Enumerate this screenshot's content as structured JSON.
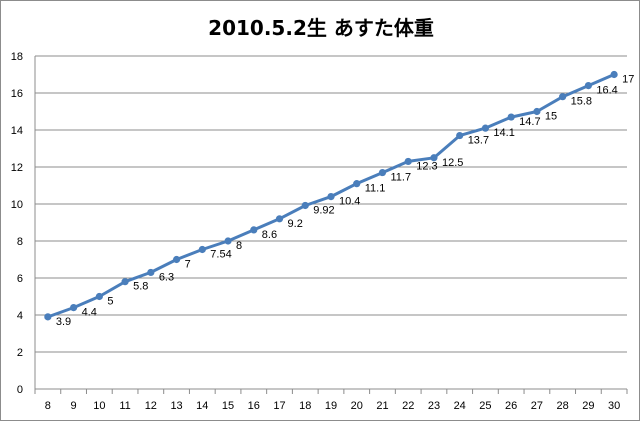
{
  "chart_data": {
    "type": "line",
    "title": "2010.5.2生 あすた体重",
    "xlabel": "",
    "ylabel": "",
    "x": [
      8,
      9,
      10,
      11,
      12,
      13,
      14,
      15,
      16,
      17,
      18,
      19,
      20,
      21,
      22,
      23,
      24,
      25,
      26,
      27,
      28,
      29,
      30
    ],
    "series": [
      {
        "values": [
          3.9,
          4.4,
          5,
          5.8,
          6.3,
          7,
          7.54,
          8,
          8.6,
          9.2,
          9.92,
          10.4,
          11.1,
          11.7,
          12.3,
          12.5,
          13.7,
          14.1,
          14.7,
          15,
          15.8,
          16.4,
          17
        ],
        "labels": [
          "3.9",
          "4.4",
          "5",
          "5.8",
          "6.3",
          "7",
          "7.54",
          "8",
          "8.6",
          "9.2",
          "9.92",
          "10.4",
          "11.1",
          "11.7",
          "12.3",
          "12.5",
          "13.7",
          "14.1",
          "14.7",
          "15",
          "15.8",
          "16.4",
          "17"
        ]
      }
    ],
    "ylim": [
      0,
      18
    ],
    "yticks": [
      0,
      2,
      4,
      6,
      8,
      10,
      12,
      14,
      16,
      18
    ],
    "grid": true,
    "line_color": "#4a7ebb"
  }
}
